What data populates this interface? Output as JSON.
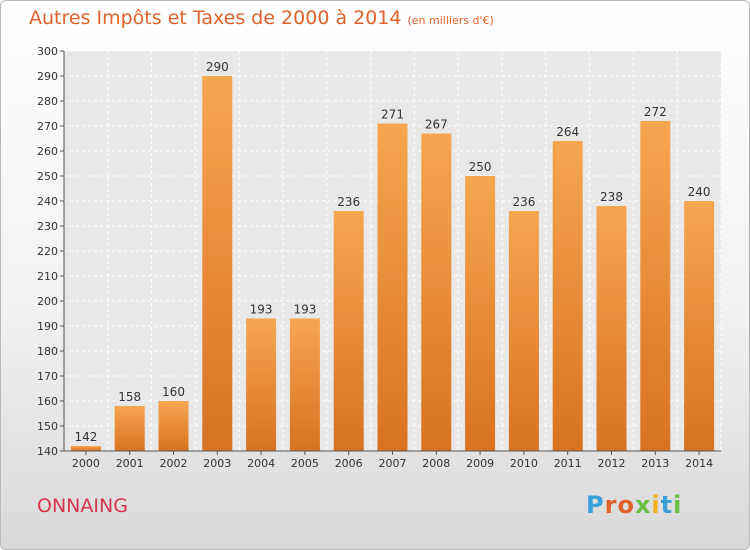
{
  "chart_data": {
    "type": "bar",
    "title": "Autres Impôts et Taxes de 2000 à 2014",
    "subtitle": "(en milliers d'€)",
    "categories": [
      "2000",
      "2001",
      "2002",
      "2003",
      "2004",
      "2005",
      "2006",
      "2007",
      "2008",
      "2009",
      "2010",
      "2011",
      "2012",
      "2013",
      "2014"
    ],
    "values": [
      142,
      158,
      160,
      290,
      193,
      193,
      236,
      271,
      267,
      250,
      236,
      264,
      238,
      272,
      240
    ],
    "ylim": [
      140,
      300
    ],
    "yticks": [
      140,
      150,
      160,
      170,
      180,
      190,
      200,
      210,
      220,
      230,
      240,
      250,
      260,
      270,
      280,
      290,
      300
    ],
    "grid": true,
    "bar_color": "#f0923a"
  },
  "footer": {
    "city": "ONNAING",
    "logo": "Proxiti"
  },
  "colors": {
    "title": "#e0622a",
    "city": "#d8334f",
    "logo": [
      "#3aa0d8",
      "#e0622a",
      "#e0622a",
      "#6abf45",
      "#f2b01e",
      "#3aa0d8",
      "#6abf45"
    ]
  }
}
